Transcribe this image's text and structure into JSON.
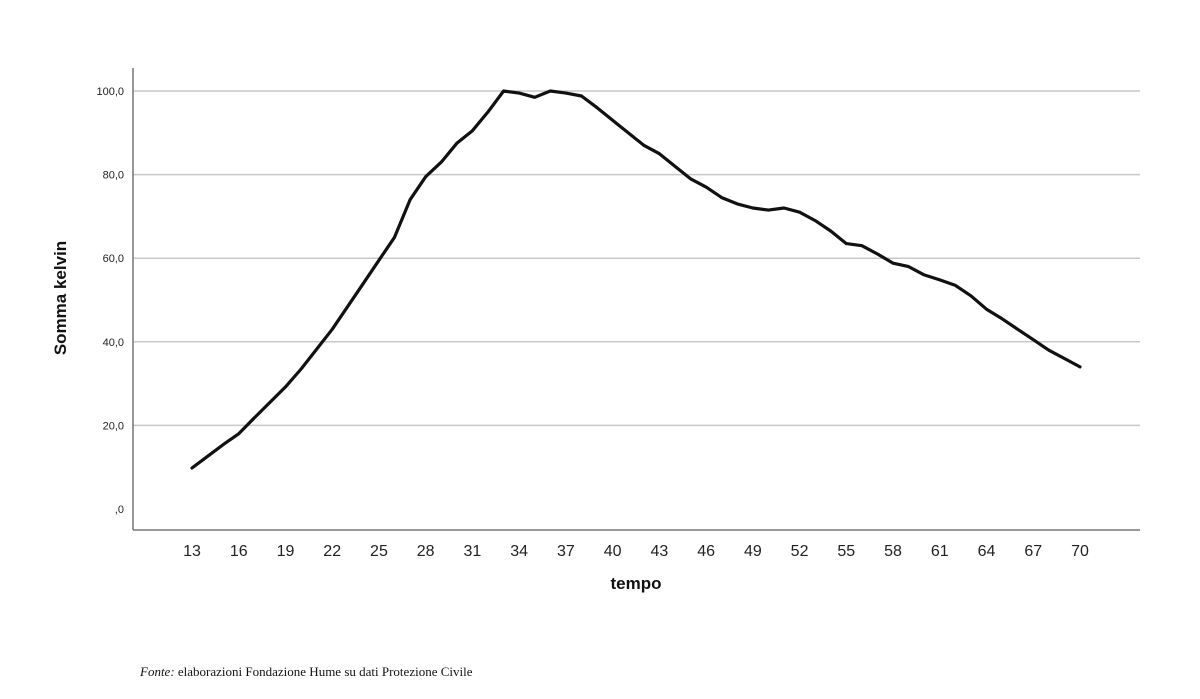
{
  "chart_data": {
    "type": "line",
    "xlabel": "tempo",
    "ylabel": "Somma kelvin",
    "ylim": [
      0,
      105
    ],
    "xlim": [
      13,
      70
    ],
    "y_ticks": [
      0,
      20,
      40,
      60,
      80,
      100
    ],
    "y_tick_labels": [
      ",0",
      "20,0",
      "40,0",
      "60,0",
      "80,0",
      "100,0"
    ],
    "x_tick_labels": [
      "13",
      "16",
      "19",
      "22",
      "25",
      "28",
      "31",
      "34",
      "37",
      "40",
      "43",
      "46",
      "49",
      "52",
      "55",
      "58",
      "61",
      "64",
      "67",
      "70"
    ],
    "grid": "horizontal",
    "series": [
      {
        "x": [
          13,
          14,
          15,
          16,
          17,
          18,
          19,
          20,
          21,
          22,
          23,
          24,
          25,
          26,
          27,
          28,
          29,
          30,
          31,
          32,
          33,
          34,
          35,
          36,
          37,
          38,
          39,
          40,
          41,
          42,
          43,
          44,
          45,
          46,
          47,
          48,
          49,
          50,
          51,
          52,
          53,
          54,
          55,
          56,
          57,
          58,
          59,
          60,
          61,
          62,
          63,
          64,
          65,
          66,
          67,
          68,
          69,
          70
        ],
        "values": [
          9.8,
          12.6,
          15.4,
          18.0,
          21.8,
          25.5,
          29.2,
          33.5,
          38.2,
          43.0,
          48.5,
          54.0,
          59.5,
          65.0,
          74.0,
          79.5,
          83.0,
          87.5,
          90.5,
          95.0,
          100.0,
          99.5,
          98.5,
          100.0,
          99.5,
          98.8,
          96.0,
          93.0,
          90.0,
          87.0,
          85.0,
          82.0,
          79.0,
          77.0,
          74.5,
          73.0,
          72.0,
          71.5,
          72.0,
          71.0,
          69.0,
          66.5,
          63.5,
          63.0,
          61.0,
          58.8,
          58.0,
          56.0,
          54.8,
          53.5,
          51.0,
          47.8,
          45.5,
          43.0,
          40.5,
          38.0,
          36.0,
          34.0
        ]
      }
    ]
  },
  "source": {
    "lead": "Fonte:",
    "text": " elaborazioni Fondazione Hume su dati Protezione Civile"
  }
}
